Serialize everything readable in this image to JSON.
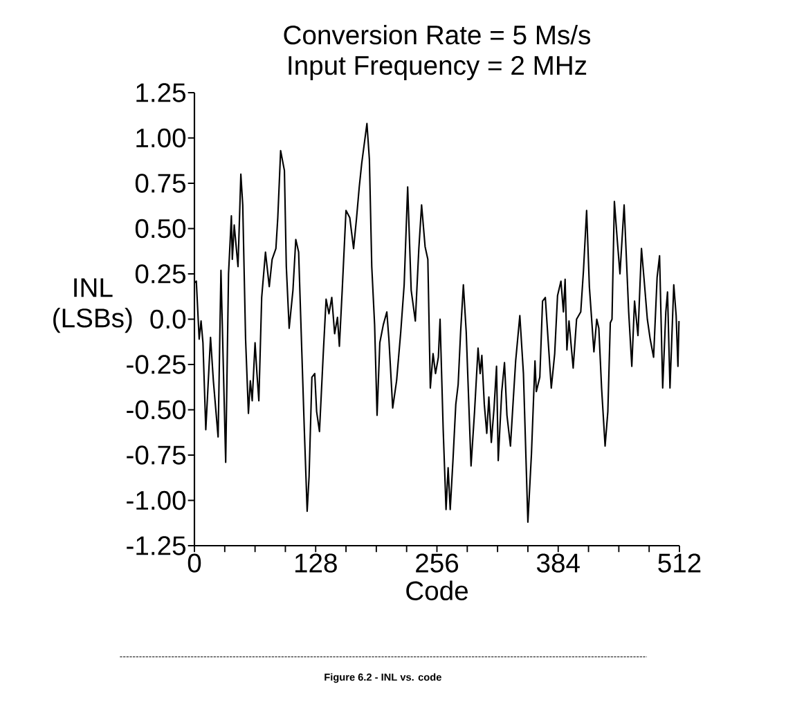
{
  "chart_data": {
    "type": "line",
    "title": "Conversion Rate = 5 Ms/s",
    "subtitle": "Input Frequency = 2 MHz",
    "xlabel": "Code",
    "ylabel": "INL (LSBs)",
    "annotations": [
      "Figure 6.2 - INL vs. code"
    ],
    "color": "#000000",
    "x": [
      0,
      2,
      5,
      7,
      9,
      12,
      17,
      20,
      25,
      28,
      33,
      36,
      39,
      40,
      42,
      46,
      49,
      51,
      54,
      57,
      59,
      61,
      64,
      66,
      68,
      71,
      75,
      79,
      82,
      86,
      88,
      91,
      95,
      97,
      100,
      104,
      107,
      110,
      116,
      119,
      121,
      124,
      127,
      129,
      132,
      136,
      139,
      142,
      145,
      148,
      151,
      153,
      156,
      160,
      164,
      168,
      171,
      174,
      176.6,
      182.1,
      184.7,
      187.2,
      190.2,
      192.8,
      195.7,
      199.4,
      203.1,
      205.3,
      209.3,
      213.4,
      217.8,
      221.4,
      225.1,
      228.8,
      233.2,
      236.9,
      239.8,
      243.5,
      246.4,
      249,
      251.9,
      254.5,
      257.5,
      259.3,
      262.6,
      265.6,
      267.8,
      270,
      272.9,
      275.9,
      278.4,
      281,
      283.9,
      286.9,
      292,
      295.7,
      299.4,
      301.6,
      303.4,
      306,
      308.6,
      310.8,
      313.4,
      316.3,
      318.9,
      320.7,
      324.4,
      327.3,
      329.9,
      333.6,
      336.5,
      339.1,
      343.5,
      347.3,
      352,
      355.8,
      359.5,
      360.9,
      364.6,
      367.5,
      370.4,
      376.7,
      380.3,
      383.3,
      386.9,
      389.5,
      391.3,
      393.2,
      395.4,
      399.8,
      403.4,
      407.8,
      410.7,
      414,
      416.9,
      421.7,
      424.7,
      426.9,
      429.8,
      433.5,
      436.4,
      439,
      440.8,
      443.3,
      446.3,
      449.2,
      453.6,
      458.4,
      461.7,
      464.6,
      468.2,
      471.9,
      474.5,
      478.1,
      481.1,
      484.7,
      488.4,
      491,
      494.3,
      497.6,
      499.4,
      502,
      506,
      508.5,
      510.4,
      511.5
    ],
    "values": [
      0.2,
      0.21,
      -0.11,
      -0.01,
      -0.13,
      -0.61,
      -0.1,
      -0.34,
      -0.65,
      0.27,
      -0.79,
      0.25,
      0.57,
      0.33,
      0.52,
      0.29,
      0.8,
      0.63,
      -0.11,
      -0.52,
      -0.34,
      -0.45,
      -0.13,
      -0.3,
      -0.45,
      0.12,
      0.37,
      0.18,
      0.33,
      0.39,
      0.56,
      0.93,
      0.82,
      0.29,
      -0.05,
      0.16,
      0.44,
      0.37,
      -0.61,
      -1.06,
      -0.87,
      -0.32,
      -0.3,
      -0.51,
      -0.62,
      -0.19,
      0.11,
      0.03,
      0.12,
      -0.08,
      0.01,
      -0.15,
      0.16,
      0.6,
      0.56,
      0.39,
      0.55,
      0.73,
      0.86,
      1.08,
      0.88,
      0.29,
      -0.03,
      -0.53,
      -0.13,
      -0.03,
      0.04,
      -0.11,
      -0.49,
      -0.34,
      -0.07,
      0.19,
      0.73,
      0.16,
      -0.01,
      0.39,
      0.63,
      0.4,
      0.33,
      -0.38,
      -0.19,
      -0.3,
      -0.21,
      0.0,
      -0.61,
      -1.05,
      -0.82,
      -1.05,
      -0.78,
      -0.47,
      -0.36,
      -0.07,
      0.19,
      -0.07,
      -0.81,
      -0.51,
      -0.16,
      -0.3,
      -0.2,
      -0.47,
      -0.63,
      -0.43,
      -0.68,
      -0.49,
      -0.26,
      -0.78,
      -0.4,
      -0.24,
      -0.53,
      -0.7,
      -0.45,
      -0.23,
      0.02,
      -0.3,
      -1.12,
      -0.74,
      -0.23,
      -0.4,
      -0.32,
      0.1,
      0.12,
      -0.38,
      -0.19,
      0.13,
      0.21,
      0.04,
      0.22,
      -0.17,
      -0.01,
      -0.27,
      0.0,
      0.04,
      0.27,
      0.6,
      0.18,
      -0.18,
      0.0,
      -0.05,
      -0.38,
      -0.7,
      -0.51,
      -0.02,
      0.0,
      0.65,
      0.44,
      0.25,
      0.63,
      0.04,
      -0.26,
      0.1,
      -0.09,
      0.39,
      0.23,
      0.0,
      -0.11,
      -0.21,
      0.23,
      0.35,
      -0.38,
      0.04,
      0.15,
      -0.38,
      0.19,
      0.02,
      -0.26,
      -0.01
    ],
    "xlim": [
      0,
      512
    ],
    "xticks": [
      0,
      {
        "value": 32,
        "label": null
      },
      {
        "value": 64,
        "label": null
      },
      {
        "value": 96,
        "label": null
      },
      128,
      {
        "value": 160,
        "label": null
      },
      {
        "value": 192,
        "label": null
      },
      {
        "value": 224,
        "label": null
      },
      256,
      {
        "value": 288,
        "label": null
      },
      {
        "value": 320,
        "label": null
      },
      {
        "value": 352,
        "label": null
      },
      384,
      {
        "value": 416,
        "label": null
      },
      {
        "value": 448,
        "label": null
      },
      {
        "value": 480,
        "label": null
      },
      512
    ],
    "ylim": [
      -1.25,
      1.25
    ],
    "yticks": [
      1.25,
      {
        "value": 1,
        "label": "1.00"
      },
      0.75,
      {
        "value": 0.5,
        "label": "0.50"
      },
      0.25,
      {
        "value": 0,
        "label": "0.0"
      },
      -0.25,
      {
        "value": -0.5,
        "label": "-0.50"
      },
      -0.75,
      {
        "value": -1,
        "label": "-1.00"
      },
      -1.25
    ],
    "line_style": "solid"
  }
}
